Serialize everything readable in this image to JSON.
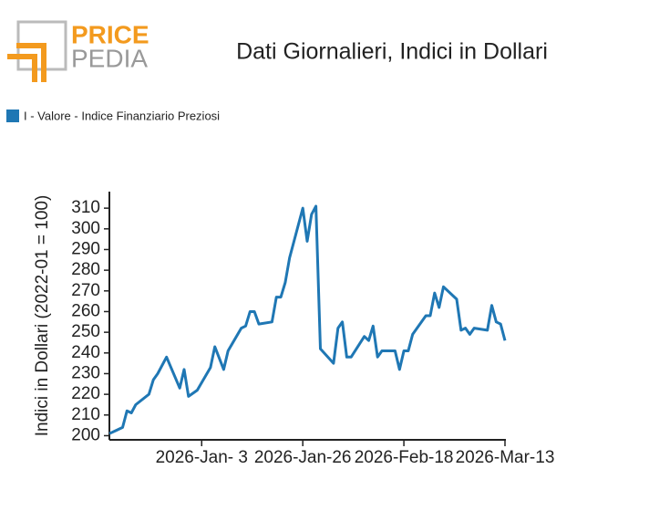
{
  "logo": {
    "top": "PRICE",
    "bottom": "PEDIA"
  },
  "chart_data": {
    "type": "line",
    "title": "Dati Giornalieri, Indici in Dollari",
    "y_label": "Indici in Dollari (2022-01 = 100)",
    "legend": "top-left",
    "grid": false,
    "x": [
      "2025-12-13",
      "2025-12-16",
      "2025-12-17",
      "2025-12-18",
      "2025-12-19",
      "2025-12-22",
      "2025-12-23",
      "2025-12-24",
      "2025-12-26",
      "2025-12-29",
      "2025-12-30",
      "2025-12-31",
      "2026-01-02",
      "2026-01-05",
      "2026-01-06",
      "2026-01-08",
      "2026-01-09",
      "2026-01-12",
      "2026-01-13",
      "2026-01-14",
      "2026-01-15",
      "2026-01-16",
      "2026-01-19",
      "2026-01-20",
      "2026-01-21",
      "2026-01-22",
      "2026-01-23",
      "2026-01-26",
      "2026-01-27",
      "2026-01-28",
      "2026-01-29",
      "2026-01-30",
      "2026-02-02",
      "2026-02-03",
      "2026-02-04",
      "2026-02-05",
      "2026-02-06",
      "2026-02-09",
      "2026-02-10",
      "2026-02-11",
      "2026-02-12",
      "2026-02-13",
      "2026-02-16",
      "2026-02-17",
      "2026-02-18",
      "2026-02-19",
      "2026-02-20",
      "2026-02-23",
      "2026-02-24",
      "2026-02-25",
      "2026-02-26",
      "2026-02-27",
      "2026-03-02",
      "2026-03-03",
      "2026-03-04",
      "2026-03-05",
      "2026-03-06",
      "2026-03-09",
      "2026-03-10",
      "2026-03-11",
      "2026-03-12",
      "2026-03-13"
    ],
    "series": [
      {
        "name": "I - Valore - Indice Finanziario Preziosi",
        "color": "#1f77b4",
        "values": [
          201,
          204,
          212,
          211,
          215,
          220,
          227,
          230,
          238,
          223,
          232,
          219,
          222,
          233,
          243,
          232,
          241,
          252,
          253,
          260,
          260,
          254,
          255,
          267,
          267,
          274,
          286,
          310,
          294,
          307,
          311,
          242,
          235,
          252,
          255,
          238,
          238,
          248,
          246,
          253,
          238,
          241,
          241,
          232,
          241,
          241,
          249,
          258,
          258,
          269,
          262,
          272,
          266,
          251,
          252,
          249,
          252,
          251,
          263,
          255,
          254,
          246
        ]
      }
    ],
    "xlim": [
      "2025-12-13",
      "2026-03-13"
    ],
    "xticks": [
      {
        "value": "2026-01-03",
        "label": "2026-Jan- 3"
      },
      {
        "value": "2026-01-26",
        "label": "2026-Jan-26"
      },
      {
        "value": "2026-02-18",
        "label": "2026-Feb-18"
      },
      {
        "value": "2026-03-13",
        "label": "2026-Mar-13"
      }
    ],
    "ylim": [
      198,
      318
    ],
    "yticks": [
      200,
      210,
      220,
      230,
      240,
      250,
      260,
      270,
      280,
      290,
      300,
      310
    ]
  }
}
